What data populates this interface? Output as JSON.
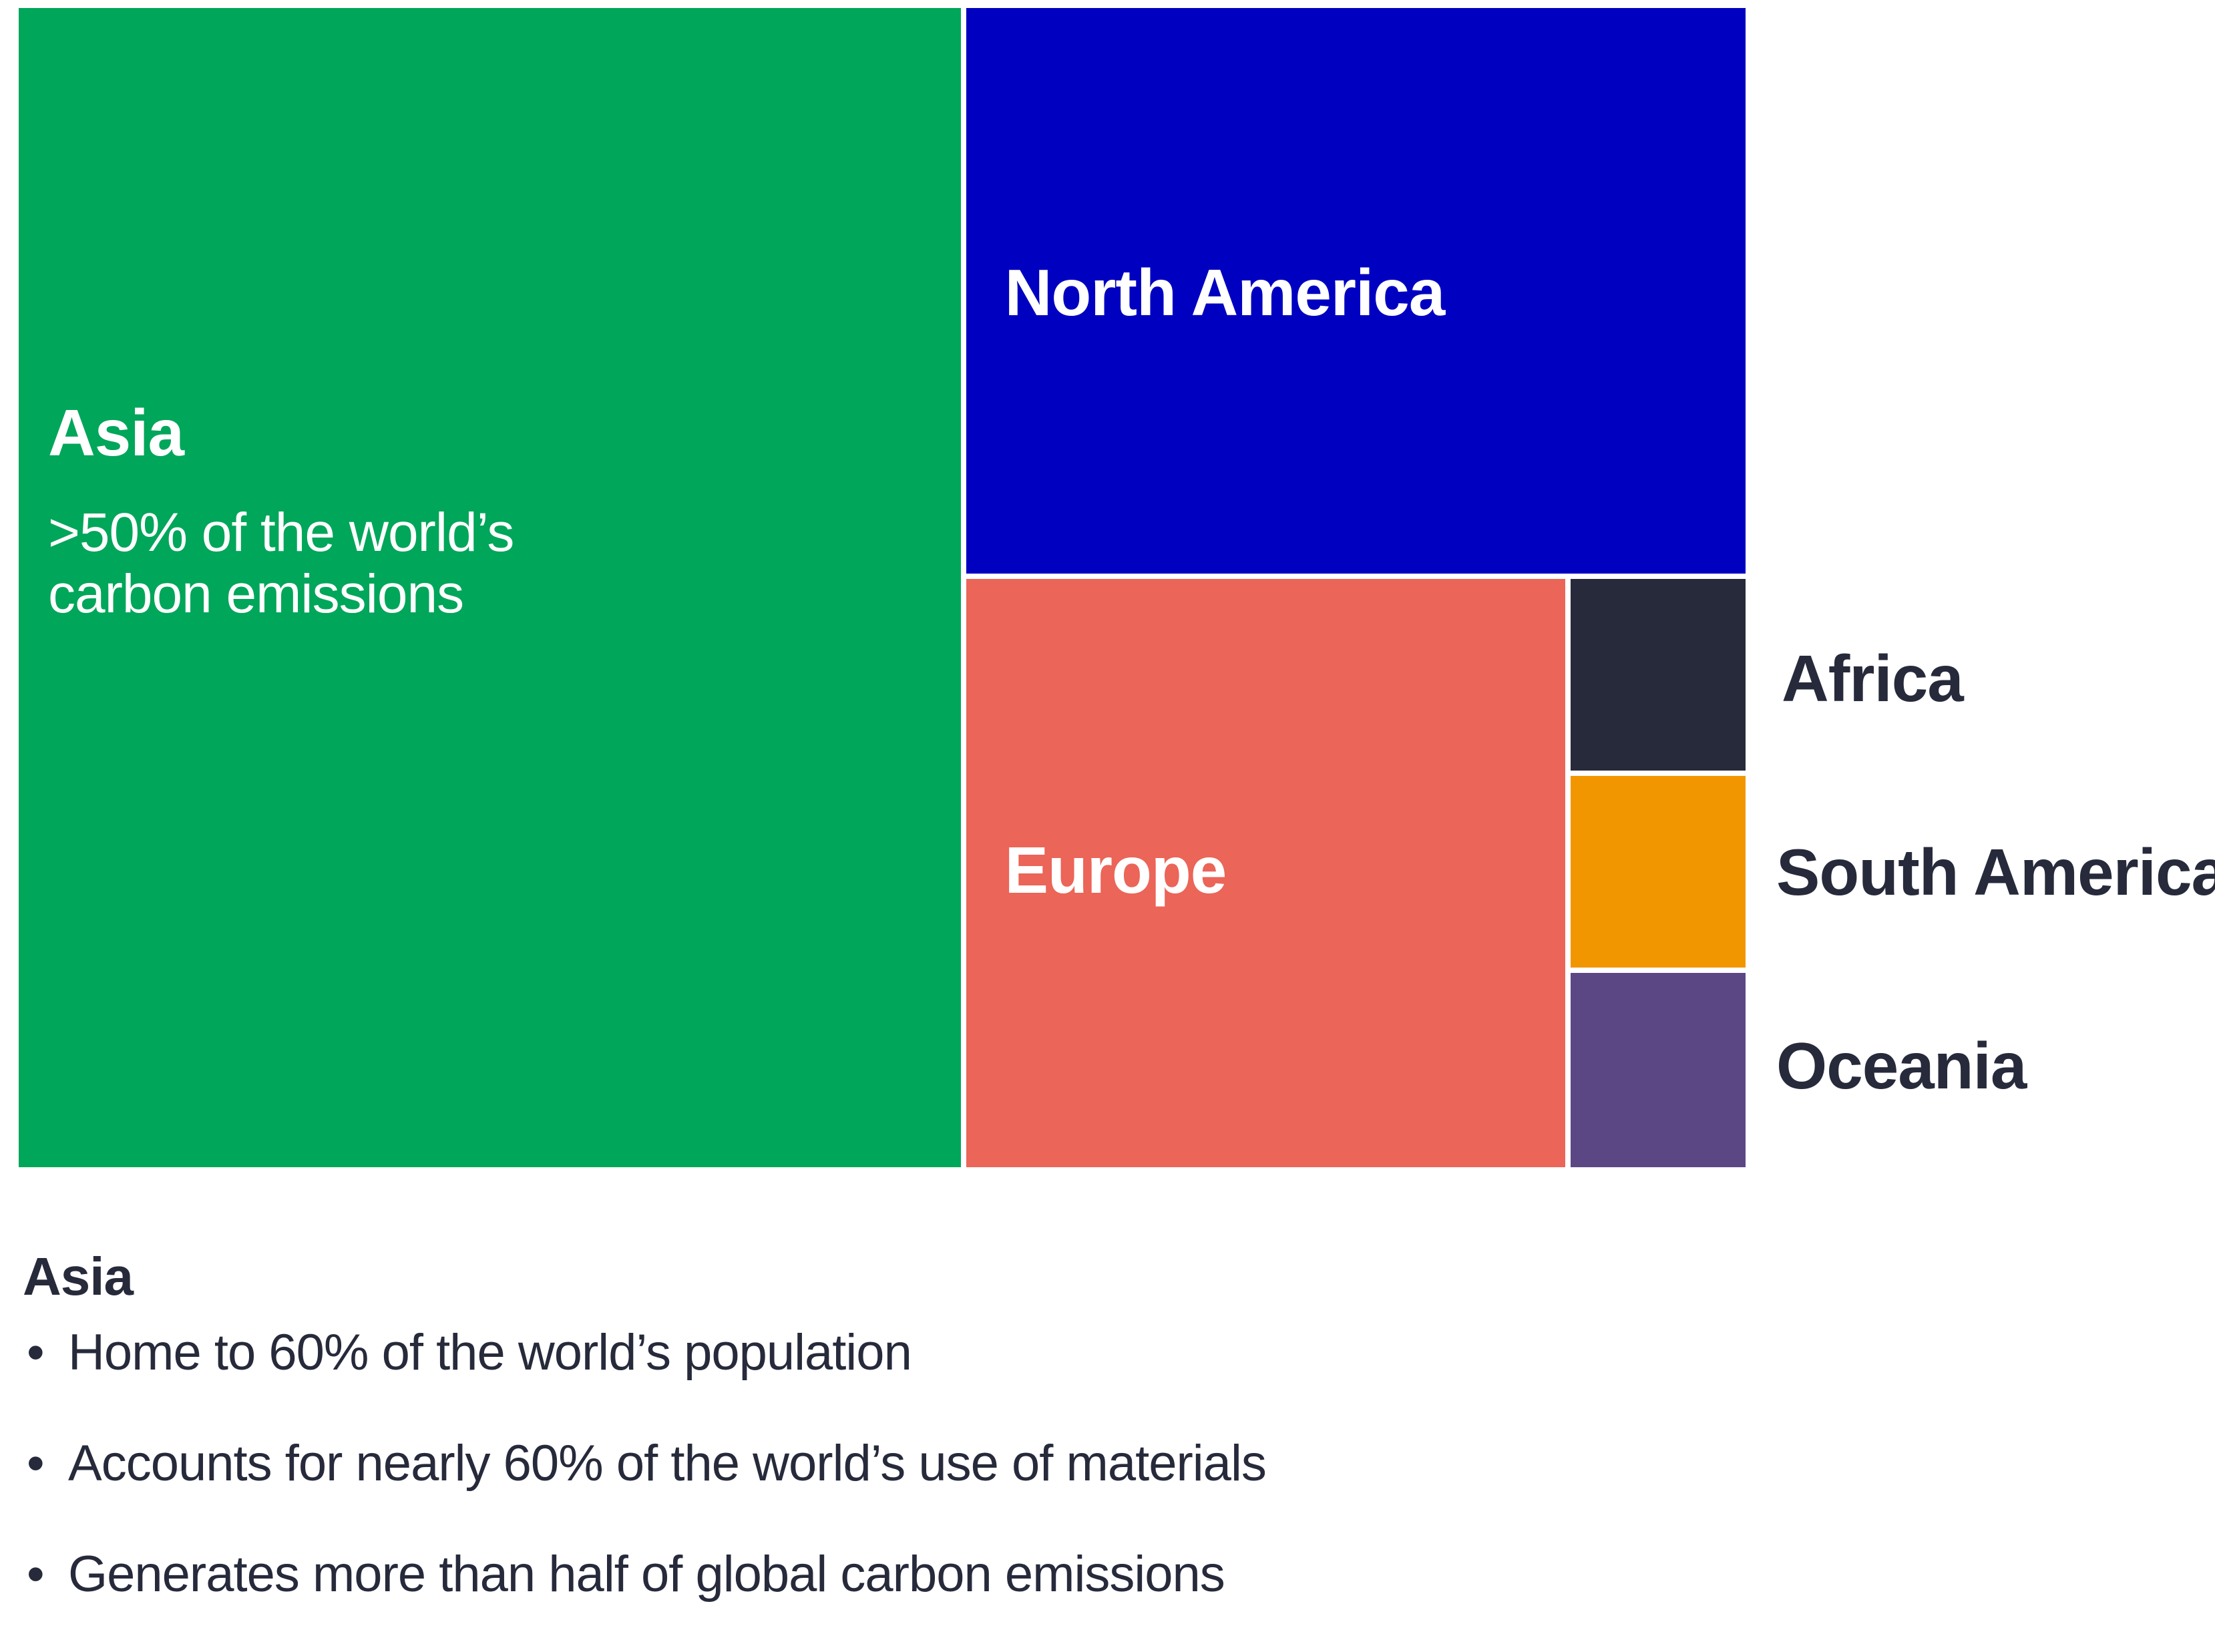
{
  "chart_data": {
    "type": "treemap",
    "title": "",
    "tiles": [
      {
        "name": "Asia",
        "label": "Asia",
        "subtext": ">50% of the world’s carbon emissions",
        "value": 50.0,
        "color": "#00a659",
        "label_placement": "inside"
      },
      {
        "name": "North America",
        "label": "North America",
        "value": 20.3,
        "color": "#0000c0",
        "label_placement": "inside"
      },
      {
        "name": "Europe",
        "label": "Europe",
        "value": 16.3,
        "color": "#eb6558",
        "label_placement": "inside"
      },
      {
        "name": "Africa",
        "label": "Africa",
        "value": 1.6,
        "color": "#262a3b",
        "label_placement": "outside"
      },
      {
        "name": "South America",
        "label": "South America",
        "value": 1.6,
        "color": "#f29600",
        "label_placement": "outside"
      },
      {
        "name": "Oceania",
        "label": "Oceania",
        "value": 1.6,
        "color": "#5c4785",
        "label_placement": "outside"
      }
    ]
  },
  "notes": {
    "title": "Asia",
    "bullet_symbol": "•",
    "items": [
      "Home to 60% of the world’s population",
      "Accounts for nearly 60% of the world’s use of materials",
      "Generates more than half of global carbon emissions"
    ]
  }
}
